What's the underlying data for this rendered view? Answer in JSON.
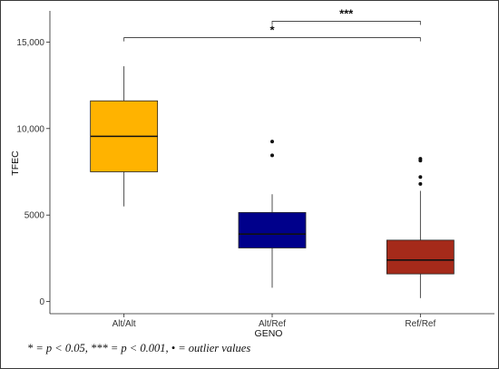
{
  "chart_data": {
    "type": "boxplot",
    "xlabel": "GENO",
    "ylabel": "TFEC",
    "ylim": [
      -700,
      16800
    ],
    "yticks": [
      0,
      5000,
      10000,
      15000
    ],
    "ytick_labels": [
      "0",
      "5000",
      "10,000",
      "15,000"
    ],
    "categories": [
      "Alt/Alt",
      "Alt/Ref",
      "Ref/Ref"
    ],
    "boxes": [
      {
        "category": "Alt/Alt",
        "color": "#FFB300",
        "whisker_low": 5500,
        "q1": 7500,
        "median": 9550,
        "q3": 11600,
        "whisker_high": 13600,
        "outliers": []
      },
      {
        "category": "Alt/Ref",
        "color": "#00008B",
        "whisker_low": 800,
        "q1": 3100,
        "median": 3900,
        "q3": 5150,
        "whisker_high": 6200,
        "outliers": [
          8450,
          9250
        ]
      },
      {
        "category": "Ref/Ref",
        "color": "#A52A1A",
        "whisker_low": 200,
        "q1": 1600,
        "median": 2400,
        "q3": 3550,
        "whisker_high": 6400,
        "outliers": [
          6800,
          7200,
          8150,
          8250
        ]
      }
    ],
    "significance": [
      {
        "from": "Alt/Alt",
        "to": "Ref/Ref",
        "label": "*",
        "y": 15250
      },
      {
        "from": "Alt/Ref",
        "to": "Ref/Ref",
        "label": "***",
        "y": 16200
      }
    ],
    "grid": false
  },
  "footnote": "* = p < 0.05, *** = p < 0.001, • = outlier values"
}
